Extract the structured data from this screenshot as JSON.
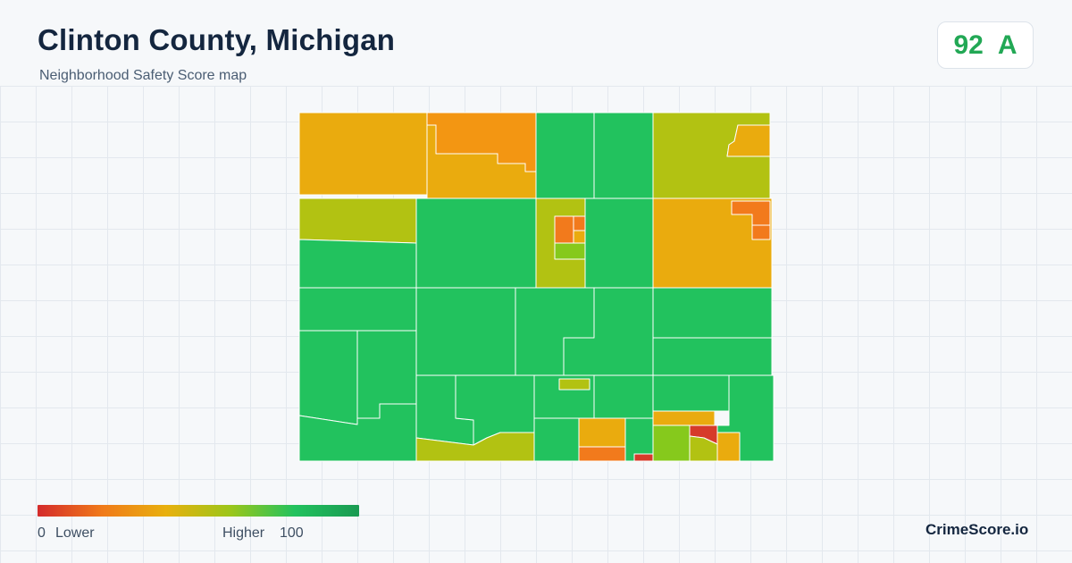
{
  "header": {
    "title": "Clinton County, Michigan",
    "subtitle": "Neighborhood Safety Score map"
  },
  "score": {
    "value": "92",
    "grade": "A",
    "color": "#22a855"
  },
  "legend": {
    "min_label": "0",
    "low_label": "Lower",
    "high_label": "Higher",
    "max_label": "100",
    "gradient_colors": [
      "#d42b2b",
      "#f07a1a",
      "#e8b00e",
      "#9cc61a",
      "#22c25e",
      "#1a9a52"
    ]
  },
  "brand": {
    "name": "CrimeScore.io"
  },
  "palette": {
    "very_low": "#d63a2a",
    "low": "#f27a1c",
    "mid_low": "#f39612",
    "mid": "#eaab0e",
    "mid_high": "#b2c212",
    "high": "#86c91c",
    "very_high": "#22c25e"
  }
}
